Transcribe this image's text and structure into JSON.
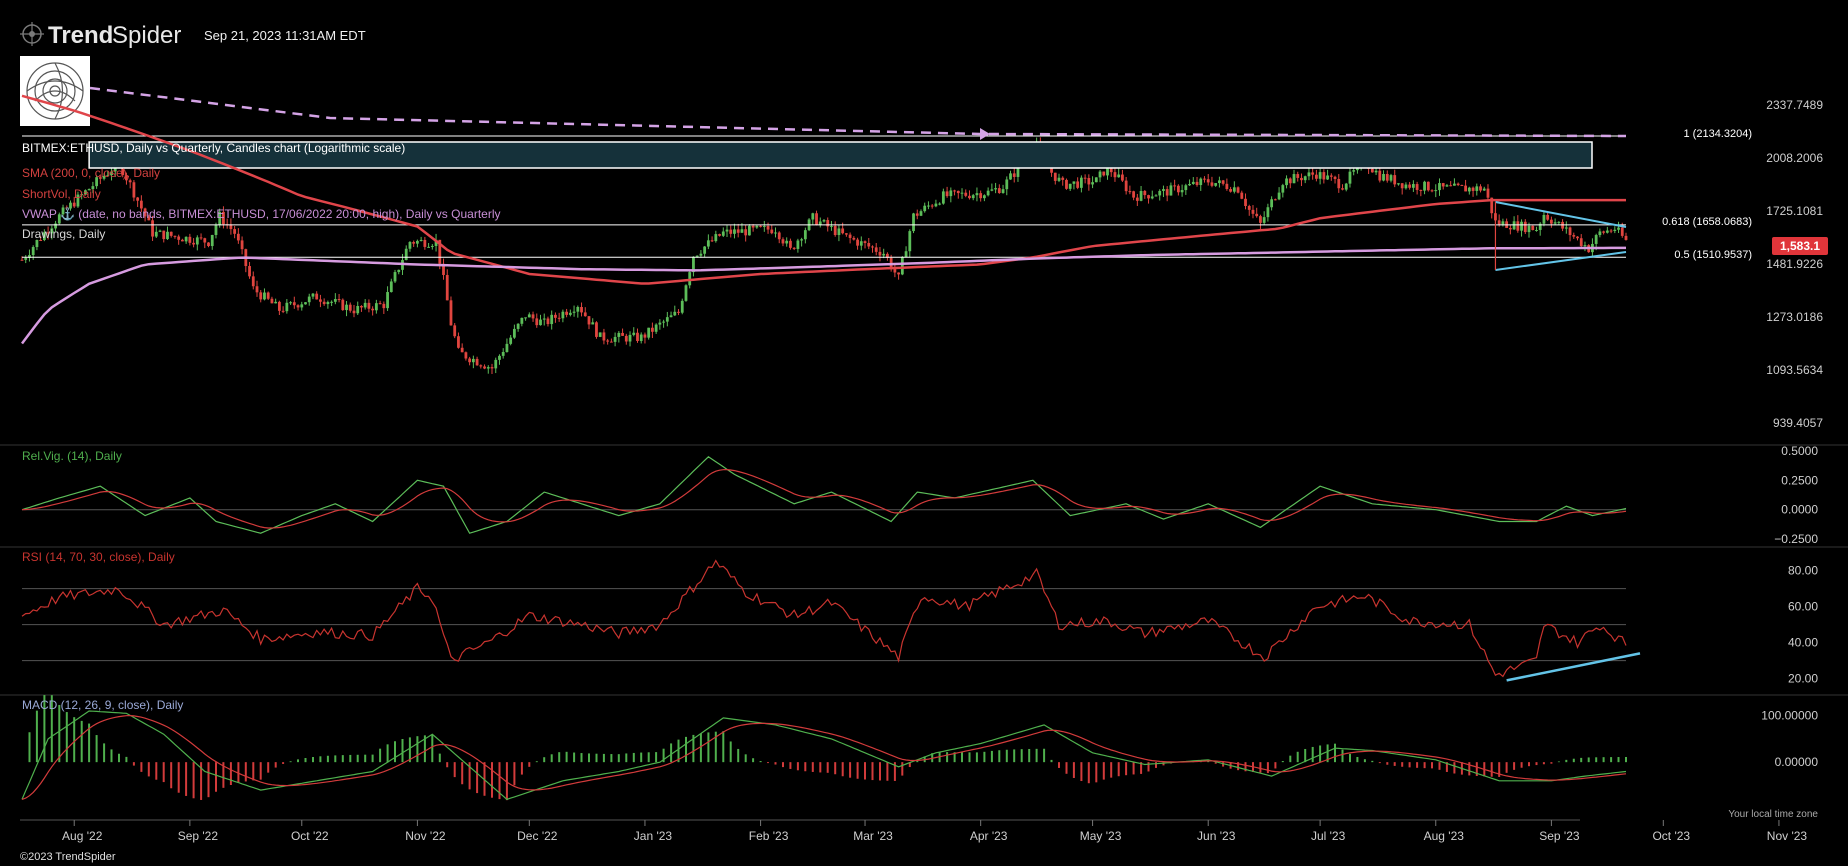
{
  "header": {
    "brand_bold": "Trend",
    "brand_light": "Spider",
    "timestamp": "Sep 21, 2023 11:31AM EDT",
    "copyright": "©2023 TrendSpider",
    "local_time_note": "Your local time zone"
  },
  "colors": {
    "background": "#000000",
    "candle_up": "#5cbd59",
    "candle_down": "#e0453f",
    "sma": "#e0454a",
    "vwap": "#d69be0",
    "dashed": "#d4a3e6",
    "drawing": "#63c4e8",
    "rsi": "#c8342f",
    "macd_line": "#4fb04d",
    "signal_line": "#d23b3b",
    "price_badge": "#e0353a"
  },
  "legend": {
    "main": "BITMEX:ETHUSD, Daily vs Quarterly, Candles chart (Logarithmic scale)",
    "sma": "SMA (200, 0, close), Daily",
    "shortvol": "ShortVol, Daily",
    "vwap": "VWAP ⚓ (date, no bands, BITMEX:ETHUSD, 17/06/2022 20:00, high), Daily vs Quarterly",
    "drawings": "Drawings, Daily",
    "relvig": "Rel.Vig. (14), Daily",
    "rsi": "RSI (14, 70, 30, close), Daily",
    "macd": "MACD (12, 26, 9, close), Daily"
  },
  "levels": {
    "fib1": "1 (2134.3204)",
    "fib618": "0.618 (1658.0683)",
    "fib05": "0.5 (1510.9537)",
    "last_price": "1,583.1"
  },
  "chart_data": {
    "type": "candlestick",
    "title": "BITMEX:ETHUSD, Daily vs Quarterly, Candles chart (Logarithmic scale)",
    "x_ticks": [
      "Aug '22",
      "Sep '22",
      "Oct '22",
      "Nov '22",
      "Dec '22",
      "Jan '23",
      "Feb '23",
      "Mar '23",
      "Apr '23",
      "May '23",
      "Jun '23",
      "Jul '23",
      "Aug '23",
      "Sep '23",
      "Oct '23",
      "Nov '23"
    ],
    "price_ticks": [
      "2337.7489",
      "2008.2006",
      "1725.1081",
      "1481.9226",
      "1273.0186",
      "1093.5634",
      "939.4057"
    ],
    "price_tick_values": [
      2337.7489,
      2008.2006,
      1725.1081,
      1481.9226,
      1273.0186,
      1093.5634,
      939.4057
    ],
    "price_scale": "log",
    "price_points": [
      [
        "2022-07-18",
        1500
      ],
      [
        "2022-07-28",
        1700
      ],
      [
        "2022-08-13",
        1980
      ],
      [
        "2022-08-22",
        1620
      ],
      [
        "2022-09-06",
        1580
      ],
      [
        "2022-09-09",
        1700
      ],
      [
        "2022-09-13",
        1620
      ],
      [
        "2022-09-18",
        1380
      ],
      [
        "2022-09-25",
        1300
      ],
      [
        "2022-10-05",
        1350
      ],
      [
        "2022-10-15",
        1300
      ],
      [
        "2022-10-23",
        1320
      ],
      [
        "2022-10-30",
        1580
      ],
      [
        "2022-11-06",
        1580
      ],
      [
        "2022-11-10",
        1250
      ],
      [
        "2022-11-12",
        1150
      ],
      [
        "2022-11-21",
        1100
      ],
      [
        "2022-11-30",
        1280
      ],
      [
        "2022-12-05",
        1250
      ],
      [
        "2022-12-14",
        1320
      ],
      [
        "2022-12-20",
        1200
      ],
      [
        "2022-12-31",
        1200
      ],
      [
        "2023-01-10",
        1290
      ],
      [
        "2023-01-14",
        1520
      ],
      [
        "2023-01-22",
        1620
      ],
      [
        "2023-02-05",
        1640
      ],
      [
        "2023-02-09",
        1540
      ],
      [
        "2023-02-15",
        1690
      ],
      [
        "2023-02-24",
        1600
      ],
      [
        "2023-03-06",
        1530
      ],
      [
        "2023-03-10",
        1420
      ],
      [
        "2023-03-14",
        1700
      ],
      [
        "2023-03-22",
        1800
      ],
      [
        "2023-04-03",
        1820
      ],
      [
        "2023-04-07",
        1850
      ],
      [
        "2023-04-13",
        2000
      ],
      [
        "2023-04-16",
        2100
      ],
      [
        "2023-04-19",
        1950
      ],
      [
        "2023-04-23",
        1860
      ],
      [
        "2023-05-02",
        1880
      ],
      [
        "2023-05-05",
        1960
      ],
      [
        "2023-05-12",
        1800
      ],
      [
        "2023-05-20",
        1820
      ],
      [
        "2023-06-01",
        1880
      ],
      [
        "2023-06-09",
        1840
      ],
      [
        "2023-06-12",
        1730
      ],
      [
        "2023-06-15",
        1660
      ],
      [
        "2023-06-21",
        1880
      ],
      [
        "2023-06-30",
        1920
      ],
      [
        "2023-07-07",
        1860
      ],
      [
        "2023-07-13",
        1990
      ],
      [
        "2023-07-17",
        1910
      ],
      [
        "2023-07-24",
        1860
      ],
      [
        "2023-08-03",
        1840
      ],
      [
        "2023-08-14",
        1840
      ],
      [
        "2023-08-17",
        1670
      ],
      [
        "2023-08-21",
        1660
      ],
      [
        "2023-08-28",
        1640
      ],
      [
        "2023-08-30",
        1710
      ],
      [
        "2023-09-05",
        1630
      ],
      [
        "2023-09-11",
        1550
      ],
      [
        "2023-09-14",
        1620
      ],
      [
        "2023-09-18",
        1640
      ],
      [
        "2023-09-21",
        1583.1
      ]
    ],
    "series": [
      {
        "name": "SMA (200, 0, close), Daily",
        "points": [
          [
            "2022-07-18",
            2400
          ],
          [
            "2022-08-01",
            2300
          ],
          [
            "2022-09-01",
            2050
          ],
          [
            "2022-10-01",
            1800
          ],
          [
            "2022-11-01",
            1650
          ],
          [
            "2022-11-10",
            1530
          ],
          [
            "2022-12-01",
            1440
          ],
          [
            "2023-01-01",
            1400
          ],
          [
            "2023-02-01",
            1440
          ],
          [
            "2023-03-01",
            1460
          ],
          [
            "2023-04-01",
            1480
          ],
          [
            "2023-04-15",
            1510
          ],
          [
            "2023-05-01",
            1560
          ],
          [
            "2023-06-01",
            1610
          ],
          [
            "2023-06-20",
            1640
          ],
          [
            "2023-07-01",
            1690
          ],
          [
            "2023-08-01",
            1760
          ],
          [
            "2023-08-16",
            1780
          ],
          [
            "2023-09-21",
            1780
          ]
        ]
      },
      {
        "name": "VWAP ⚓ (date, no bands, BITMEX:ETHUSD, 17/06/2022 20:00, high), Daily vs Quarterly",
        "points": [
          [
            "2022-07-18",
            1180
          ],
          [
            "2022-07-25",
            1300
          ],
          [
            "2022-08-05",
            1400
          ],
          [
            "2022-08-20",
            1480
          ],
          [
            "2022-09-15",
            1510
          ],
          [
            "2022-11-01",
            1480
          ],
          [
            "2022-12-15",
            1460
          ],
          [
            "2023-01-15",
            1455
          ],
          [
            "2023-02-15",
            1470
          ],
          [
            "2023-03-15",
            1485
          ],
          [
            "2023-04-15",
            1505
          ],
          [
            "2023-05-15",
            1520
          ],
          [
            "2023-06-15",
            1530
          ],
          [
            "2023-07-15",
            1540
          ],
          [
            "2023-08-15",
            1550
          ],
          [
            "2023-09-21",
            1552
          ]
        ]
      }
    ],
    "relvig_ticks": [
      "0.5000",
      "0.2500",
      "0.0000",
      "−0.2500"
    ],
    "relvig_tick_values": [
      0.5,
      0.25,
      0,
      -0.25
    ],
    "relvig_points": [
      [
        "2022-07-18",
        0
      ],
      [
        "2022-07-28",
        0.1
      ],
      [
        "2022-08-08",
        0.2
      ],
      [
        "2022-08-20",
        -0.05
      ],
      [
        "2022-09-01",
        0.1
      ],
      [
        "2022-09-08",
        -0.1
      ],
      [
        "2022-09-20",
        -0.2
      ],
      [
        "2022-10-01",
        -0.05
      ],
      [
        "2022-10-10",
        0.05
      ],
      [
        "2022-10-20",
        -0.1
      ],
      [
        "2022-11-01",
        0.25
      ],
      [
        "2022-11-08",
        0.2
      ],
      [
        "2022-11-15",
        -0.2
      ],
      [
        "2022-11-25",
        -0.1
      ],
      [
        "2022-12-05",
        0.15
      ],
      [
        "2022-12-15",
        0.05
      ],
      [
        "2022-12-25",
        -0.05
      ],
      [
        "2023-01-05",
        0.05
      ],
      [
        "2023-01-18",
        0.45
      ],
      [
        "2023-01-25",
        0.3
      ],
      [
        "2023-02-10",
        0.05
      ],
      [
        "2023-02-20",
        0.15
      ],
      [
        "2023-03-08",
        -0.1
      ],
      [
        "2023-03-15",
        0.15
      ],
      [
        "2023-03-25",
        0.1
      ],
      [
        "2023-04-15",
        0.25
      ],
      [
        "2023-04-25",
        -0.05
      ],
      [
        "2023-05-10",
        0.05
      ],
      [
        "2023-05-20",
        -0.08
      ],
      [
        "2023-06-01",
        0.05
      ],
      [
        "2023-06-15",
        -0.15
      ],
      [
        "2023-07-01",
        0.2
      ],
      [
        "2023-07-15",
        0.05
      ],
      [
        "2023-08-01",
        0
      ],
      [
        "2023-08-18",
        -0.1
      ],
      [
        "2023-08-28",
        -0.1
      ],
      [
        "2023-09-05",
        0.03
      ],
      [
        "2023-09-12",
        -0.05
      ],
      [
        "2023-09-21",
        0.01
      ]
    ],
    "rsi_ticks": [
      "80.00",
      "60.00",
      "40.00",
      "20.00"
    ],
    "rsi_tick_values": [
      80,
      60,
      40,
      20
    ],
    "rsi_points": [
      [
        "2022-07-18",
        55
      ],
      [
        "2022-07-28",
        65
      ],
      [
        "2022-08-13",
        70
      ],
      [
        "2022-08-25",
        50
      ],
      [
        "2022-09-10",
        58
      ],
      [
        "2022-09-20",
        42
      ],
      [
        "2022-10-05",
        46
      ],
      [
        "2022-10-20",
        44
      ],
      [
        "2022-11-01",
        70
      ],
      [
        "2022-11-05",
        65
      ],
      [
        "2022-11-10",
        30
      ],
      [
        "2022-11-20",
        40
      ],
      [
        "2022-12-01",
        55
      ],
      [
        "2022-12-15",
        50
      ],
      [
        "2022-12-25",
        45
      ],
      [
        "2023-01-05",
        50
      ],
      [
        "2023-01-20",
        85
      ],
      [
        "2023-01-28",
        68
      ],
      [
        "2023-02-10",
        55
      ],
      [
        "2023-02-20",
        62
      ],
      [
        "2023-03-10",
        32
      ],
      [
        "2023-03-16",
        66
      ],
      [
        "2023-03-28",
        60
      ],
      [
        "2023-04-16",
        78
      ],
      [
        "2023-04-22",
        50
      ],
      [
        "2023-05-05",
        52
      ],
      [
        "2023-05-15",
        45
      ],
      [
        "2023-06-01",
        52
      ],
      [
        "2023-06-16",
        32
      ],
      [
        "2023-06-30",
        60
      ],
      [
        "2023-07-13",
        66
      ],
      [
        "2023-07-25",
        52
      ],
      [
        "2023-08-10",
        50
      ],
      [
        "2023-08-17",
        22
      ],
      [
        "2023-08-28",
        30
      ],
      [
        "2023-08-30",
        50
      ],
      [
        "2023-09-08",
        40
      ],
      [
        "2023-09-14",
        50
      ],
      [
        "2023-09-21",
        39
      ]
    ],
    "macd_ticks": [
      "100.00000",
      "0.00000"
    ],
    "macd_tick_values": [
      100,
      0
    ],
    "macd_points": [
      [
        "2022-07-18",
        -80
      ],
      [
        "2022-07-25",
        50
      ],
      [
        "2022-08-05",
        110
      ],
      [
        "2022-08-15",
        105
      ],
      [
        "2022-08-25",
        60
      ],
      [
        "2022-09-05",
        -20
      ],
      [
        "2022-09-20",
        -60
      ],
      [
        "2022-10-05",
        -40
      ],
      [
        "2022-10-20",
        -20
      ],
      [
        "2022-11-05",
        60
      ],
      [
        "2022-11-15",
        -10
      ],
      [
        "2022-11-25",
        -80
      ],
      [
        "2022-12-10",
        -40
      ],
      [
        "2022-12-25",
        -20
      ],
      [
        "2023-01-05",
        0
      ],
      [
        "2023-01-22",
        95
      ],
      [
        "2023-02-05",
        80
      ],
      [
        "2023-02-20",
        50
      ],
      [
        "2023-03-10",
        -10
      ],
      [
        "2023-03-20",
        20
      ],
      [
        "2023-04-01",
        40
      ],
      [
        "2023-04-18",
        80
      ],
      [
        "2023-05-01",
        20
      ],
      [
        "2023-05-15",
        -5
      ],
      [
        "2023-06-01",
        5
      ],
      [
        "2023-06-18",
        -30
      ],
      [
        "2023-07-05",
        30
      ],
      [
        "2023-07-15",
        25
      ],
      [
        "2023-08-01",
        5
      ],
      [
        "2023-08-18",
        -40
      ],
      [
        "2023-09-01",
        -40
      ],
      [
        "2023-09-10",
        -30
      ],
      [
        "2023-09-21",
        -20
      ]
    ]
  }
}
